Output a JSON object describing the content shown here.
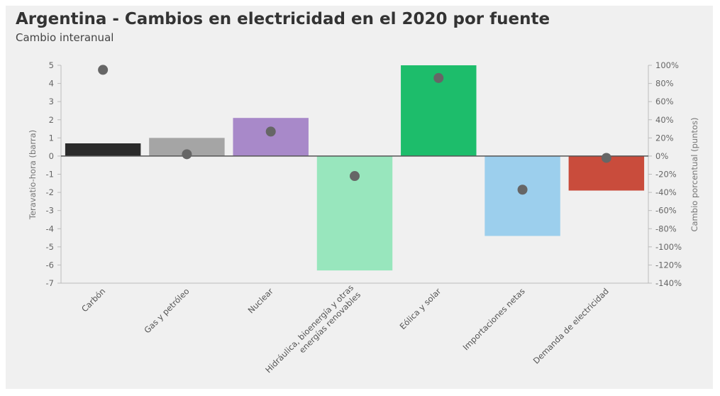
{
  "chart_data": {
    "type": "bar",
    "title": "Argentina - Cambios en electricidad en el 2020 por fuente",
    "subtitle": "Cambio interanual",
    "ylabel": "Teravatio-hora (barra)",
    "y2label": "Cambio porcentual (puntos)",
    "ylim": [
      -7,
      5
    ],
    "y2lim": [
      -140,
      100
    ],
    "yticks": [
      "5",
      "4",
      "3",
      "2",
      "1",
      "0",
      "-1",
      "-2",
      "-3",
      "-4",
      "-5",
      "-6",
      "-7"
    ],
    "y2ticks": [
      "100%",
      "80%",
      "60%",
      "40%",
      "20%",
      "0%",
      "-20%",
      "-40%",
      "-60%",
      "-80%",
      "-100%",
      "-120%",
      "-140%"
    ],
    "categories": [
      [
        "Carbón"
      ],
      [
        "Gas y petróleo"
      ],
      [
        "Nuclear"
      ],
      [
        "Hidráulica, bioenergía y otras",
        "energías renovables"
      ],
      [
        "Eólica y solar"
      ],
      [
        "Importaciones netas"
      ],
      [
        "Demanda de electricidad"
      ]
    ],
    "bar_values": [
      0.7,
      1.0,
      2.1,
      -6.3,
      5.0,
      -4.4,
      -1.9
    ],
    "bar_colors": [
      "#2b2b2b",
      "#a5a5a5",
      "#a889c9",
      "#98e6bd",
      "#1dbd6b",
      "#9ccfed",
      "#c94c3c"
    ],
    "point_values": [
      95,
      2,
      27,
      -22,
      86,
      -37,
      -2
    ],
    "point_color": "#666666",
    "grid": false,
    "legend": "none"
  }
}
